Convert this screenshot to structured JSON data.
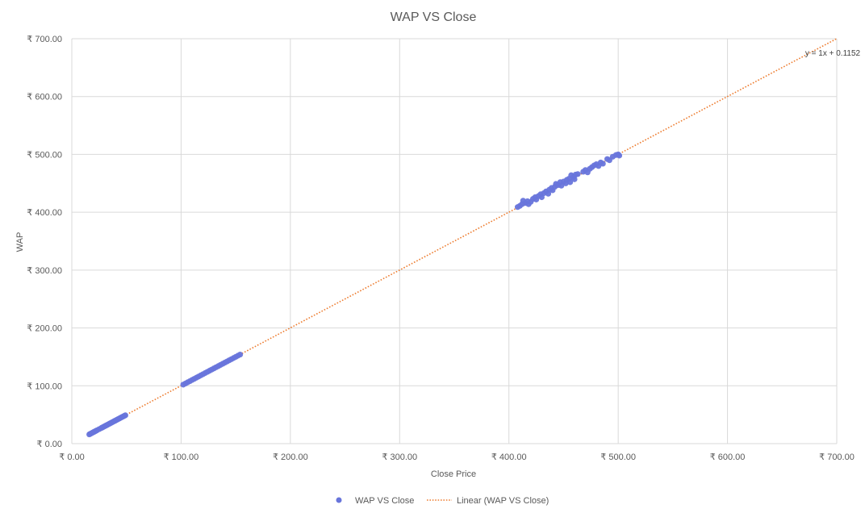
{
  "chart_data": {
    "type": "scatter",
    "title": "WAP VS Close",
    "xlabel": "Close Price",
    "ylabel": "WAP",
    "xlim": [
      0,
      700
    ],
    "ylim": [
      0,
      700
    ],
    "x_ticks": [
      "₹ 0.00",
      "₹ 100.00",
      "₹ 200.00",
      "₹ 300.00",
      "₹ 400.00",
      "₹ 500.00",
      "₹ 600.00",
      "₹ 700.00"
    ],
    "y_ticks": [
      "₹ 0.00",
      "₹ 100.00",
      "₹ 200.00",
      "₹ 300.00",
      "₹ 400.00",
      "₹ 500.00",
      "₹ 600.00",
      "₹ 700.00"
    ],
    "tick_values": [
      0,
      100,
      200,
      300,
      400,
      500,
      600,
      700
    ],
    "grid": true,
    "legend_position": "bottom",
    "series": [
      {
        "name": "WAP VS Close",
        "color": "#6875DB",
        "points": [
          [
            16,
            16
          ],
          [
            17,
            17
          ],
          [
            18,
            18
          ],
          [
            19,
            19
          ],
          [
            20,
            20
          ],
          [
            21,
            21
          ],
          [
            22,
            22
          ],
          [
            23,
            23
          ],
          [
            25,
            25
          ],
          [
            27,
            27
          ],
          [
            28,
            28
          ],
          [
            29,
            29
          ],
          [
            30,
            30
          ],
          [
            31,
            31
          ],
          [
            32,
            32
          ],
          [
            33,
            33
          ],
          [
            34,
            34
          ],
          [
            35,
            35
          ],
          [
            36,
            36
          ],
          [
            37,
            37
          ],
          [
            38,
            38
          ],
          [
            39,
            39
          ],
          [
            40,
            40
          ],
          [
            41,
            41
          ],
          [
            42,
            42
          ],
          [
            43,
            43
          ],
          [
            44,
            44
          ],
          [
            45,
            45
          ],
          [
            46,
            46
          ],
          [
            47,
            47
          ],
          [
            48,
            48
          ],
          [
            49,
            49
          ],
          [
            102,
            102
          ],
          [
            104,
            104
          ],
          [
            106,
            106
          ],
          [
            108,
            108
          ],
          [
            110,
            110
          ],
          [
            112,
            112
          ],
          [
            114,
            114
          ],
          [
            116,
            116
          ],
          [
            118,
            118
          ],
          [
            120,
            120
          ],
          [
            122,
            122
          ],
          [
            124,
            124
          ],
          [
            126,
            126
          ],
          [
            128,
            128
          ],
          [
            130,
            130
          ],
          [
            132,
            132
          ],
          [
            134,
            134
          ],
          [
            136,
            136
          ],
          [
            138,
            138
          ],
          [
            140,
            140
          ],
          [
            142,
            142
          ],
          [
            144,
            144
          ],
          [
            146,
            146
          ],
          [
            148,
            148
          ],
          [
            150,
            150
          ],
          [
            152,
            152
          ],
          [
            154,
            154
          ],
          [
            408,
            409
          ],
          [
            410,
            411
          ],
          [
            412,
            414
          ],
          [
            413,
            420
          ],
          [
            415,
            416
          ],
          [
            417,
            419
          ],
          [
            418,
            414
          ],
          [
            420,
            418
          ],
          [
            422,
            423
          ],
          [
            424,
            426
          ],
          [
            425,
            422
          ],
          [
            427,
            428
          ],
          [
            429,
            431
          ],
          [
            430,
            426
          ],
          [
            432,
            433
          ],
          [
            434,
            436
          ],
          [
            436,
            432
          ],
          [
            437,
            439
          ],
          [
            439,
            442
          ],
          [
            440,
            438
          ],
          [
            442,
            444
          ],
          [
            443,
            449
          ],
          [
            445,
            447
          ],
          [
            447,
            452
          ],
          [
            448,
            446
          ],
          [
            450,
            453
          ],
          [
            452,
            450
          ],
          [
            453,
            456
          ],
          [
            455,
            458
          ],
          [
            456,
            452
          ],
          [
            457,
            464
          ],
          [
            459,
            461
          ],
          [
            460,
            457
          ],
          [
            461,
            465
          ],
          [
            463,
            466
          ],
          [
            468,
            470
          ],
          [
            470,
            473
          ],
          [
            472,
            469
          ],
          [
            474,
            475
          ],
          [
            476,
            478
          ],
          [
            478,
            481
          ],
          [
            480,
            483
          ],
          [
            482,
            480
          ],
          [
            484,
            486
          ],
          [
            486,
            484
          ],
          [
            490,
            492
          ],
          [
            492,
            490
          ],
          [
            495,
            496
          ],
          [
            498,
            499
          ],
          [
            500,
            500
          ],
          [
            501,
            498
          ]
        ]
      }
    ],
    "trendline": {
      "name": "Linear (WAP VS Close)",
      "slope": 1,
      "intercept": 0.1152,
      "x_range": [
        50,
        700
      ],
      "color": "#ED7D31",
      "equation": "y = 1x + 0.1152"
    },
    "legend": [
      {
        "label": "WAP VS Close",
        "kind": "marker"
      },
      {
        "label": "Linear (WAP VS Close)",
        "kind": "dotted-line"
      }
    ]
  }
}
